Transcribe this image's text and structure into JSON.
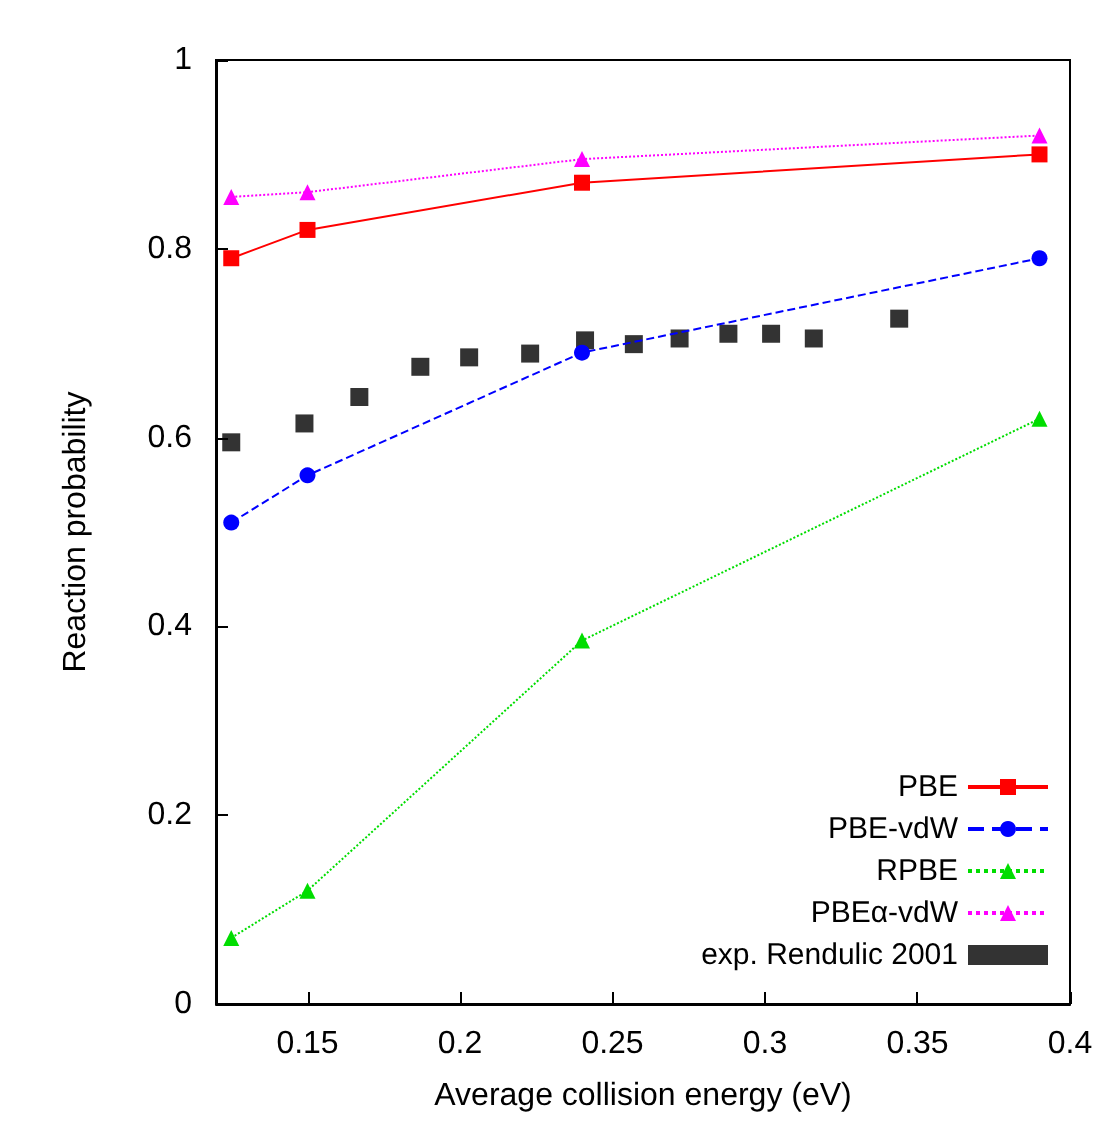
{
  "chart_data": {
    "type": "line",
    "xlabel": "Average collision energy (eV)",
    "ylabel": "Reaction probability",
    "xlim": [
      0.12,
      0.4
    ],
    "xticks": [
      0.15,
      0.2,
      0.25,
      0.3,
      0.35,
      0.4
    ],
    "ylim": [
      0,
      1
    ],
    "yticks": [
      0,
      0.2,
      0.4,
      0.6,
      0.8,
      1
    ],
    "grid": false,
    "legend": "bottom right",
    "series": [
      {
        "name": "PBE",
        "color": "#ff0000",
        "marker": "square",
        "line_style": "solid",
        "x": [
          0.125,
          0.15,
          0.24,
          0.39
        ],
        "values": [
          0.79,
          0.82,
          0.87,
          0.9
        ]
      },
      {
        "name": "PBE-vdW",
        "color": "#0000ff",
        "marker": "circle",
        "line_style": "dashed",
        "x": [
          0.125,
          0.15,
          0.24,
          0.39
        ],
        "values": [
          0.51,
          0.56,
          0.69,
          0.79
        ]
      },
      {
        "name": "RPBE",
        "color": "#00dd00",
        "marker": "triangle",
        "line_style": "dotted",
        "x": [
          0.125,
          0.15,
          0.24,
          0.39
        ],
        "values": [
          0.07,
          0.12,
          0.385,
          0.62
        ]
      },
      {
        "name": "PBEα-vdW",
        "color": "#ff00ff",
        "marker": "triangle",
        "line_style": "dotted",
        "x": [
          0.125,
          0.15,
          0.24,
          0.39
        ],
        "values": [
          0.855,
          0.86,
          0.895,
          0.92
        ]
      },
      {
        "name": "exp. Rendulic 2001",
        "type": "scatter",
        "color": "#000000",
        "marker": "square",
        "x": [
          0.125,
          0.149,
          0.167,
          0.187,
          0.203,
          0.223,
          0.241,
          0.257,
          0.272,
          0.288,
          0.302,
          0.316,
          0.344
        ],
        "values": [
          0.595,
          0.615,
          0.643,
          0.675,
          0.685,
          0.689,
          0.703,
          0.699,
          0.705,
          0.71,
          0.71,
          0.705,
          0.726
        ]
      }
    ]
  }
}
